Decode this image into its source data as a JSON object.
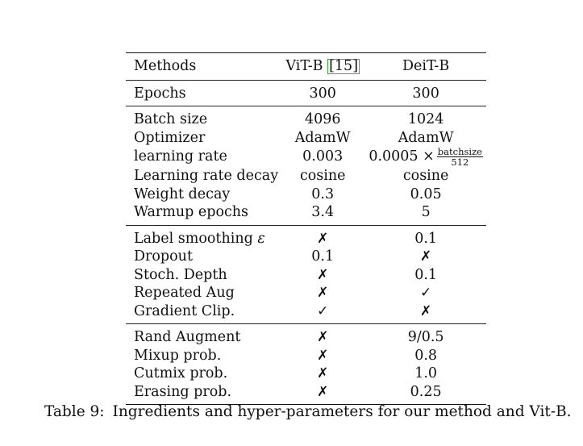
{
  "table": {
    "headers": {
      "method": "Methods",
      "vit": "ViT-B",
      "vit_cite": "15",
      "deit": "DeiT-B"
    },
    "sections": [
      [
        {
          "label": "Epochs",
          "vit": "300",
          "deit": "300"
        }
      ],
      [
        {
          "label": "Batch size",
          "vit": "4096",
          "deit": "1024"
        },
        {
          "label": "Optimizer",
          "vit": "AdamW",
          "deit": "AdamW"
        },
        {
          "label": "learning rate",
          "vit": "0.003",
          "deit": "0.0005 ×",
          "deit_frac_num": "batchsize",
          "deit_frac_den": "512"
        },
        {
          "label": "Learning rate decay",
          "vit": "cosine",
          "deit": "cosine"
        },
        {
          "label": "Weight decay",
          "vit": "0.3",
          "deit": "0.05"
        },
        {
          "label": "Warmup epochs",
          "vit": "3.4",
          "deit": "5"
        }
      ],
      [
        {
          "label": "Label smoothing ",
          "label_symbol": "ε",
          "vit": "✗",
          "deit": "0.1"
        },
        {
          "label": "Dropout",
          "vit": "0.1",
          "deit": "✗"
        },
        {
          "label": "Stoch. Depth",
          "vit": "✗",
          "deit": "0.1"
        },
        {
          "label": "Repeated Aug",
          "vit": "✗",
          "deit": "✓"
        },
        {
          "label": "Gradient Clip.",
          "vit": "✓",
          "deit": "✗"
        }
      ],
      [
        {
          "label": "Rand Augment",
          "vit": "✗",
          "deit": "9/0.5"
        },
        {
          "label": "Mixup prob.",
          "vit": "✗",
          "deit": "0.8"
        },
        {
          "label": "Cutmix prob.",
          "vit": "✗",
          "deit": "1.0"
        },
        {
          "label": "Erasing prob.",
          "vit": "✗",
          "deit": "0.25"
        }
      ]
    ]
  },
  "caption": {
    "label": "Table 9:",
    "text": "Ingredients and hyper-parameters for our method and Vit-B."
  },
  "colors": {
    "citation_box": "#2db52d",
    "rule": "#111111"
  }
}
